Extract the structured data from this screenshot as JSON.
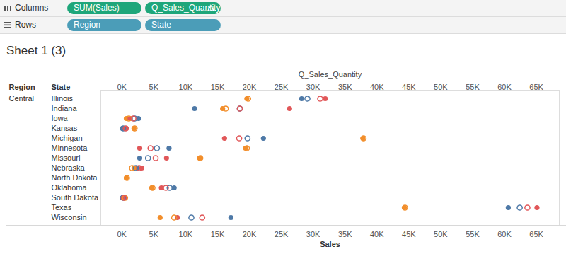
{
  "shelves": [
    {
      "label": "Columns",
      "pills": [
        "SUM(Sales)",
        "Q_Sales_Quantity"
      ]
    },
    {
      "label": "Rows",
      "pills": [
        "Region",
        "State"
      ]
    }
  ],
  "chart_data": {
    "type": "scatter",
    "title": "Sheet 1 (3)",
    "row_headers": [
      "Region",
      "State"
    ],
    "group": "Central",
    "xlabel": "Sales",
    "x2label": "Q_Sales_Quantity",
    "categories": [
      "Illinois",
      "Indiana",
      "Iowa",
      "Kansas",
      "Michigan",
      "Minnesota",
      "Missouri",
      "Nebraska",
      "North Dakota",
      "Oklahoma",
      "South Dakota",
      "Texas",
      "Wisconsin"
    ],
    "xlim": [
      -3300,
      68600
    ],
    "xticks": [
      {
        "value": 0,
        "label": "0K"
      },
      {
        "value": 5000,
        "label": "5K"
      },
      {
        "value": 10000,
        "label": "10K"
      },
      {
        "value": 15000,
        "label": "15K"
      },
      {
        "value": 20000,
        "label": "20K"
      },
      {
        "value": 25000,
        "label": "25K"
      },
      {
        "value": 30000,
        "label": "30K"
      },
      {
        "value": 35000,
        "label": "35K"
      },
      {
        "value": 40000,
        "label": "40K"
      },
      {
        "value": 45000,
        "label": "45K"
      },
      {
        "value": 50000,
        "label": "50K"
      },
      {
        "value": 55000,
        "label": "55K"
      },
      {
        "value": 60000,
        "label": "60K"
      },
      {
        "value": 65000,
        "label": "65K"
      }
    ],
    "grid": false,
    "series": [
      {
        "color": "#4e79a7",
        "marker": "circle",
        "values": [
          28200,
          11400,
          2600,
          100,
          22200,
          7400,
          2800,
          2400,
          null,
          8200,
          100,
          60600,
          17100
        ]
      },
      {
        "color": "#f28e2b",
        "marker": "circle",
        "values": [
          19600,
          15800,
          700,
          1900,
          37800,
          19400,
          12200,
          1900,
          700,
          4700,
          400,
          44300,
          6000
        ]
      },
      {
        "color": "#e15759",
        "marker": "circle",
        "values": [
          31900,
          26300,
          1300,
          700,
          16100,
          2800,
          7000,
          3100,
          null,
          6200,
          300,
          65100,
          8700
        ]
      },
      {
        "color": "#4e79a7",
        "marker": "open circle",
        "values": [
          29100,
          18500,
          2000,
          200,
          19700,
          5500,
          4100,
          2200,
          null,
          7500,
          200,
          62400,
          10900
        ]
      },
      {
        "color": "#f28e2b",
        "marker": "open circle",
        "values": [
          19800,
          16300,
          1100,
          2000,
          37900,
          19600,
          12300,
          1600,
          800,
          4800,
          500,
          44400,
          8200
        ]
      },
      {
        "color": "#e15759",
        "marker": "open circle",
        "values": [
          31100,
          18500,
          1800,
          600,
          18400,
          4500,
          5300,
          2700,
          null,
          6900,
          300,
          63600,
          12600
        ]
      }
    ]
  }
}
